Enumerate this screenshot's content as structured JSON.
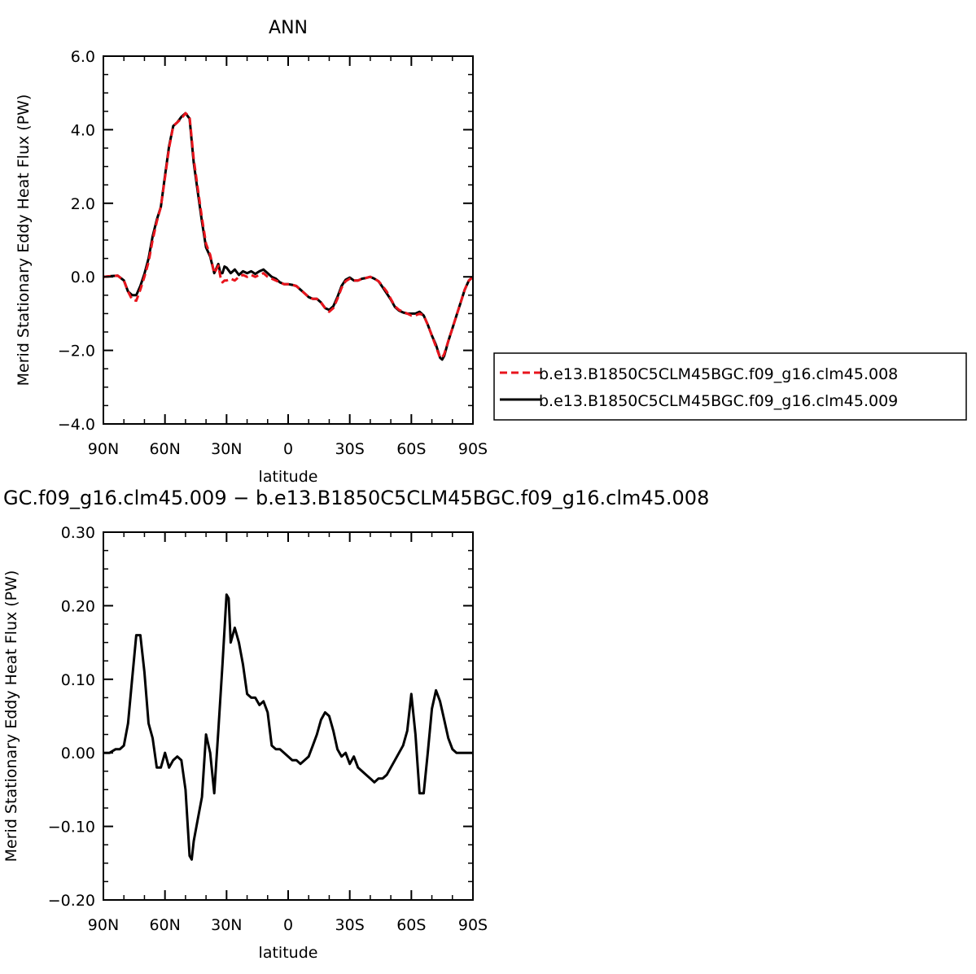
{
  "chart_data": [
    {
      "type": "line",
      "title": "ANN",
      "xlabel": "latitude",
      "ylabel": "Merid Stationary Eddy Heat Flux (PW)",
      "xlim": [
        90,
        -90
      ],
      "ylim": [
        -4.0,
        6.0
      ],
      "x_ticks": [
        {
          "value": 90,
          "label": "90N"
        },
        {
          "value": 60,
          "label": "60N"
        },
        {
          "value": 30,
          "label": "30N"
        },
        {
          "value": 0,
          "label": "0"
        },
        {
          "value": -30,
          "label": "30S"
        },
        {
          "value": -60,
          "label": "60S"
        },
        {
          "value": -90,
          "label": "90S"
        }
      ],
      "y_ticks": [
        {
          "value": -4,
          "label": "−4.0"
        },
        {
          "value": -2,
          "label": "−2.0"
        },
        {
          "value": 0,
          "label": "0.0"
        },
        {
          "value": 2,
          "label": "2.0"
        },
        {
          "value": 4,
          "label": "4.0"
        },
        {
          "value": 6,
          "label": "6.0"
        }
      ],
      "legend_position": "right",
      "series": [
        {
          "name": "b.e13.B1850C5CLM45BGC.f09_g16.clm45.008",
          "color": "#e8141c",
          "dash": "dashed",
          "x": [
            90,
            86,
            83,
            80,
            78,
            76,
            74,
            72,
            70,
            68,
            66,
            64,
            62,
            60,
            58,
            56,
            54,
            52,
            50,
            48,
            46,
            44,
            42,
            40,
            38,
            36,
            34,
            33,
            32,
            31,
            30,
            28,
            26,
            24,
            22,
            20,
            18,
            16,
            14,
            12,
            10,
            8,
            6,
            4,
            2,
            0,
            -2,
            -4,
            -6,
            -8,
            -10,
            -12,
            -14,
            -16,
            -18,
            -20,
            -22,
            -24,
            -26,
            -28,
            -30,
            -32,
            -34,
            -36,
            -38,
            -40,
            -42,
            -44,
            -46,
            -48,
            -50,
            -52,
            -54,
            -56,
            -58,
            -60,
            -62,
            -64,
            -66,
            -68,
            -70,
            -72,
            -74,
            -75,
            -76,
            -78,
            -80,
            -82,
            -84,
            -86,
            -88,
            -90
          ],
          "y": [
            0.0,
            0.02,
            0.03,
            -0.1,
            -0.4,
            -0.62,
            -0.65,
            -0.35,
            0.0,
            0.4,
            1.0,
            1.5,
            1.9,
            2.7,
            3.5,
            4.1,
            4.2,
            4.3,
            4.45,
            4.35,
            3.2,
            2.4,
            1.6,
            0.9,
            0.6,
            0.1,
            0.3,
            0.0,
            -0.15,
            -0.1,
            -0.1,
            -0.05,
            -0.1,
            0.0,
            0.05,
            0.0,
            0.05,
            0.0,
            0.05,
            0.1,
            0.0,
            -0.05,
            -0.1,
            -0.15,
            -0.2,
            -0.2,
            -0.22,
            -0.25,
            -0.35,
            -0.45,
            -0.55,
            -0.6,
            -0.6,
            -0.7,
            -0.85,
            -0.95,
            -0.85,
            -0.6,
            -0.3,
            -0.12,
            -0.05,
            -0.1,
            -0.1,
            -0.05,
            -0.03,
            0.0,
            -0.05,
            -0.12,
            -0.25,
            -0.4,
            -0.6,
            -0.8,
            -0.9,
            -0.95,
            -1.0,
            -1.05,
            -1.05,
            -1.0,
            -1.05,
            -1.3,
            -1.6,
            -1.9,
            -2.2,
            -2.2,
            -2.1,
            -1.75,
            -1.4,
            -1.05,
            -0.7,
            -0.35,
            -0.1,
            0.0
          ]
        },
        {
          "name": "b.e13.B1850C5CLM45BGC.f09_g16.clm45.009",
          "color": "#000000",
          "dash": "solid",
          "x": [
            90,
            86,
            83,
            80,
            78,
            76,
            74,
            72,
            70,
            68,
            66,
            64,
            62,
            60,
            58,
            56,
            54,
            52,
            50,
            48,
            46,
            44,
            42,
            40,
            38,
            36,
            34,
            33,
            32,
            31,
            30,
            28,
            26,
            24,
            22,
            20,
            18,
            16,
            14,
            12,
            10,
            8,
            6,
            4,
            2,
            0,
            -2,
            -4,
            -6,
            -8,
            -10,
            -12,
            -14,
            -16,
            -18,
            -20,
            -22,
            -24,
            -26,
            -28,
            -30,
            -32,
            -34,
            -36,
            -38,
            -40,
            -42,
            -44,
            -46,
            -48,
            -50,
            -52,
            -54,
            -56,
            -58,
            -60,
            -62,
            -64,
            -66,
            -68,
            -70,
            -72,
            -74,
            -75,
            -76,
            -78,
            -80,
            -82,
            -84,
            -86,
            -88,
            -90
          ],
          "y": [
            0.0,
            0.02,
            0.03,
            -0.1,
            -0.4,
            -0.5,
            -0.5,
            -0.25,
            0.08,
            0.5,
            1.1,
            1.55,
            1.9,
            2.75,
            3.55,
            4.1,
            4.2,
            4.35,
            4.45,
            4.3,
            3.1,
            2.3,
            1.5,
            0.8,
            0.55,
            0.1,
            0.35,
            0.1,
            0.1,
            0.28,
            0.25,
            0.1,
            0.2,
            0.05,
            0.15,
            0.1,
            0.15,
            0.08,
            0.15,
            0.2,
            0.1,
            0.0,
            -0.05,
            -0.15,
            -0.2,
            -0.2,
            -0.22,
            -0.25,
            -0.35,
            -0.45,
            -0.55,
            -0.6,
            -0.6,
            -0.7,
            -0.85,
            -0.9,
            -0.8,
            -0.55,
            -0.25,
            -0.08,
            -0.02,
            -0.1,
            -0.1,
            -0.05,
            -0.03,
            0.0,
            -0.05,
            -0.12,
            -0.28,
            -0.45,
            -0.62,
            -0.82,
            -0.92,
            -0.97,
            -1.0,
            -1.0,
            -1.0,
            -0.95,
            -1.05,
            -1.3,
            -1.6,
            -1.85,
            -2.2,
            -2.25,
            -2.15,
            -1.75,
            -1.4,
            -1.05,
            -0.7,
            -0.35,
            -0.1,
            0.0
          ]
        }
      ]
    },
    {
      "type": "line",
      "title": "GC.f09_g16.clm45.009 − b.e13.B1850C5CLM45BGC.f09_g16.clm45.008",
      "xlabel": "latitude",
      "ylabel": "Merid Stationary Eddy Heat Flux (PW)",
      "xlim": [
        90,
        -90
      ],
      "ylim": [
        -0.2,
        0.3
      ],
      "x_ticks": [
        {
          "value": 90,
          "label": "90N"
        },
        {
          "value": 60,
          "label": "60N"
        },
        {
          "value": 30,
          "label": "30N"
        },
        {
          "value": 0,
          "label": "0"
        },
        {
          "value": -30,
          "label": "30S"
        },
        {
          "value": -60,
          "label": "60S"
        },
        {
          "value": -90,
          "label": "90S"
        }
      ],
      "y_ticks": [
        {
          "value": -0.2,
          "label": "−0.20"
        },
        {
          "value": -0.1,
          "label": "−0.10"
        },
        {
          "value": 0.0,
          "label": "0.00"
        },
        {
          "value": 0.1,
          "label": "0.10"
        },
        {
          "value": 0.2,
          "label": "0.20"
        },
        {
          "value": 0.3,
          "label": "0.30"
        }
      ],
      "series": [
        {
          "color": "#000000",
          "dash": "solid",
          "x": [
            90,
            87,
            84,
            82,
            80,
            78,
            76,
            74,
            72,
            70,
            68,
            66,
            64,
            62,
            60,
            58,
            56,
            54,
            52,
            50,
            48,
            47,
            46,
            44,
            42,
            40,
            38,
            36,
            34,
            32,
            30,
            29,
            28,
            26,
            24,
            22,
            20,
            18,
            16,
            14,
            12,
            10,
            8,
            6,
            4,
            2,
            0,
            -2,
            -4,
            -6,
            -8,
            -10,
            -12,
            -14,
            -16,
            -18,
            -20,
            -22,
            -24,
            -26,
            -28,
            -30,
            -32,
            -34,
            -36,
            -38,
            -40,
            -42,
            -44,
            -46,
            -48,
            -50,
            -52,
            -54,
            -56,
            -58,
            -60,
            -62,
            -64,
            -66,
            -68,
            -70,
            -72,
            -74,
            -76,
            -78,
            -80,
            -82,
            -84,
            -86,
            -88,
            -90
          ],
          "y": [
            0.0,
            0.0,
            0.005,
            0.005,
            0.01,
            0.04,
            0.1,
            0.16,
            0.16,
            0.11,
            0.04,
            0.02,
            -0.02,
            -0.02,
            0.0,
            -0.02,
            -0.01,
            -0.005,
            -0.01,
            -0.05,
            -0.14,
            -0.145,
            -0.12,
            -0.09,
            -0.06,
            0.025,
            0.0,
            -0.055,
            0.03,
            0.12,
            0.215,
            0.21,
            0.15,
            0.17,
            0.15,
            0.12,
            0.08,
            0.075,
            0.075,
            0.065,
            0.07,
            0.055,
            0.01,
            0.005,
            0.005,
            0.0,
            -0.005,
            -0.01,
            -0.01,
            -0.015,
            -0.01,
            -0.005,
            0.01,
            0.025,
            0.045,
            0.055,
            0.05,
            0.03,
            0.005,
            -0.005,
            0.0,
            -0.015,
            -0.005,
            -0.02,
            -0.025,
            -0.03,
            -0.035,
            -0.04,
            -0.035,
            -0.035,
            -0.03,
            -0.02,
            -0.01,
            0.0,
            0.01,
            0.03,
            0.08,
            0.025,
            -0.055,
            -0.055,
            0.0,
            0.06,
            0.085,
            0.07,
            0.045,
            0.02,
            0.005,
            0.0,
            0.0,
            0.0,
            0.0,
            0.0
          ]
        }
      ]
    }
  ]
}
